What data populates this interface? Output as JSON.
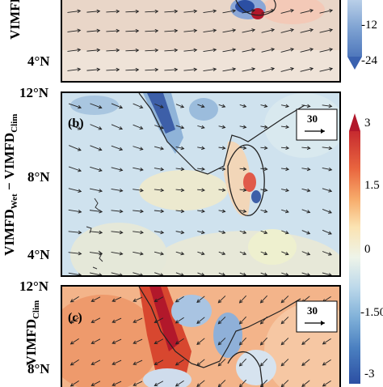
{
  "panel_a": {
    "lat_label": "4°N",
    "ylabel": "VIMFD"
  },
  "panel_b": {
    "letter": "(b)",
    "lat_labels": [
      "12°N",
      "8°N",
      "4°N"
    ],
    "ylabel_main": "VIMFD",
    "ylabel_sub1": "Wet",
    "ylabel_mid": " − VIMFD",
    "ylabel_sub2": "Clim",
    "ref_vector": "30"
  },
  "panel_c": {
    "letter": "(c)",
    "lat_labels": [
      "12°N",
      "8°N"
    ],
    "ylabel_main": "VIMFD",
    "ylabel_sub": "Clim",
    "ref_vector": "30"
  },
  "colorbar_top": {
    "ticks": [
      "-12",
      "-24"
    ]
  },
  "colorbar_bottom": {
    "ticks": [
      "3",
      "1.5",
      "0",
      "-1.50",
      "-3"
    ]
  },
  "colors": {
    "land_outline": "#222222",
    "strong_positive": "#b2182b",
    "strong_negative": "#2c4fa3",
    "neutral": "#f4f0ea"
  }
}
